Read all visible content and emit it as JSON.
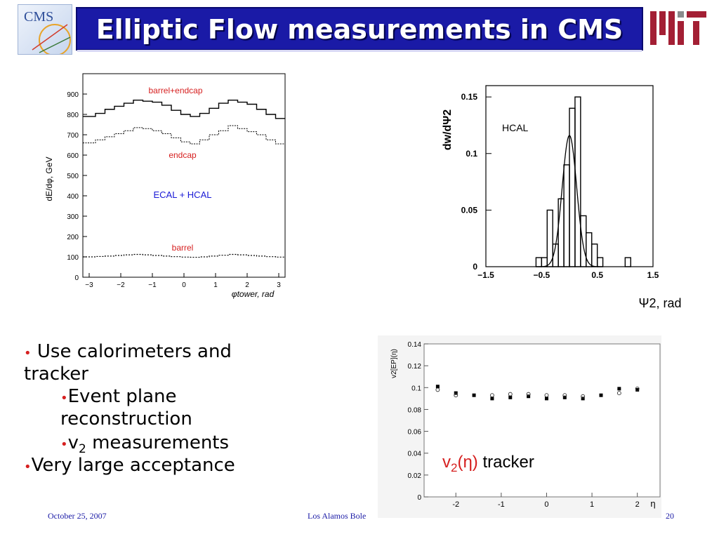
{
  "slide": {
    "title": "Elliptic Flow measurements in CMS",
    "logo_left_text": "CMS",
    "footer_date": "October 25, 2007",
    "footer_center": "Los Alamos Bole",
    "page_number": "20"
  },
  "bullets": {
    "b1_line1": "Use calorimeters and",
    "b1_line2": "tracker",
    "b2_line1": "Event plane",
    "b2_line2": "reconstruction",
    "b3_v": "v",
    "b3_sub": "2",
    "b3_rest": " measurements",
    "b4": "Very large acceptance",
    "bullet_char": "•"
  },
  "colors": {
    "title_bg": "#1a1aa6",
    "bullet": "#d62020",
    "annotation_red": "#d62020",
    "annotation_blue": "#1a1ad6",
    "mit_red": "#a31f34",
    "mit_gray": "#8a8b8c"
  },
  "chart_data": [
    {
      "type": "line",
      "ylabel": "dE/dφ, GeV",
      "xlabel": "φtower, rad",
      "xlim": [
        -3.2,
        3.2
      ],
      "ylim": [
        0,
        1000
      ],
      "xticks": [
        -3,
        -2,
        -1,
        0,
        1,
        2,
        3
      ],
      "yticks": [
        0,
        100,
        200,
        300,
        400,
        500,
        600,
        700,
        800,
        900
      ],
      "annotations": [
        "barrel+endcap",
        "endcap",
        "ECAL + HCAL",
        "barrel"
      ],
      "series": [
        {
          "name": "barrel+endcap",
          "x": [
            -3.2,
            -2.8,
            -2.5,
            -2.2,
            -1.9,
            -1.6,
            -1.3,
            -1.0,
            -0.7,
            -0.4,
            -0.1,
            0.2,
            0.5,
            0.8,
            1.1,
            1.4,
            1.7,
            2.0,
            2.3,
            2.6,
            2.9,
            3.2
          ],
          "values": [
            790,
            805,
            825,
            840,
            855,
            870,
            865,
            860,
            845,
            820,
            800,
            790,
            805,
            830,
            855,
            870,
            860,
            850,
            825,
            800,
            780,
            770
          ]
        },
        {
          "name": "endcap",
          "x": [
            -3.2,
            -2.8,
            -2.5,
            -2.2,
            -1.9,
            -1.6,
            -1.3,
            -1.0,
            -0.7,
            -0.4,
            -0.1,
            0.2,
            0.5,
            0.8,
            1.1,
            1.4,
            1.7,
            2.0,
            2.3,
            2.6,
            2.9,
            3.2
          ],
          "values": [
            660,
            675,
            690,
            705,
            720,
            735,
            730,
            720,
            705,
            685,
            665,
            655,
            675,
            700,
            720,
            745,
            730,
            715,
            700,
            675,
            655,
            650
          ]
        },
        {
          "name": "barrel",
          "x": [
            -3.2,
            -2.8,
            -2.5,
            -2.2,
            -1.9,
            -1.6,
            -1.3,
            -1.0,
            -0.7,
            -0.4,
            -0.1,
            0.2,
            0.5,
            0.8,
            1.1,
            1.4,
            1.7,
            2.0,
            2.3,
            2.6,
            2.9,
            3.2
          ],
          "values": [
            100,
            102,
            104,
            107,
            110,
            112,
            110,
            107,
            104,
            101,
            99,
            98,
            100,
            104,
            108,
            112,
            110,
            107,
            104,
            101,
            99,
            98
          ]
        }
      ]
    },
    {
      "type": "bar",
      "ylabel": "dw/dΨ2",
      "xlabel": "Ψ2, rad",
      "annotation": "HCAL",
      "xlim": [
        -1.5,
        1.5
      ],
      "ylim": [
        0,
        0.16
      ],
      "xticks": [
        -1.5,
        -0.5,
        0.5,
        1.5
      ],
      "xtick_labels": [
        "−1.5",
        "−0.5",
        "0.5",
        "1.5"
      ],
      "yticks": [
        0,
        0.05,
        0.1,
        0.15
      ],
      "bin_width": 0.1,
      "bin_lefts": [
        -0.6,
        -0.5,
        -0.4,
        -0.3,
        -0.2,
        -0.1,
        0.0,
        0.1,
        0.2,
        0.3,
        0.4,
        0.5,
        0.6,
        0.7,
        0.8,
        0.9,
        1.0
      ],
      "values": [
        0.008,
        0.008,
        0.05,
        0.02,
        0.06,
        0.09,
        0.14,
        0.15,
        0.045,
        0.03,
        0.02,
        0.008,
        0.0,
        0.0,
        0.0,
        0.0,
        0.008
      ],
      "fit": {
        "name": "gaussian",
        "mean": 0.0,
        "sigma": 0.13,
        "amplitude": 0.116
      }
    },
    {
      "type": "scatter",
      "ylabel": "v2[EP](η)",
      "xlabel": "η",
      "xlim": [
        -2.7,
        2.5
      ],
      "ylim": [
        0,
        0.14
      ],
      "xticks": [
        -2,
        -1,
        0,
        1,
        2
      ],
      "yticks": [
        0,
        0.02,
        0.04,
        0.06,
        0.08,
        0.1,
        0.12,
        0.14
      ],
      "annotation": {
        "v": "v",
        "sub": "2",
        "eta": "(η)",
        "rest": " tracker"
      },
      "series": [
        {
          "marker": "filled-square",
          "x": [
            -2.4,
            -2.0,
            -1.6,
            -1.2,
            -0.8,
            -0.4,
            0.0,
            0.4,
            0.8,
            1.2,
            1.6,
            2.0
          ],
          "values": [
            0.101,
            0.095,
            0.093,
            0.09,
            0.091,
            0.092,
            0.09,
            0.091,
            0.09,
            0.093,
            0.099,
            0.098
          ]
        },
        {
          "marker": "open-circle",
          "x": [
            -2.4,
            -2.0,
            -1.2,
            -0.8,
            -0.4,
            0.0,
            0.4,
            0.8,
            1.6,
            2.0
          ],
          "values": [
            0.098,
            0.093,
            0.093,
            0.094,
            0.094,
            0.093,
            0.093,
            0.092,
            0.095,
            0.099
          ]
        }
      ]
    }
  ]
}
